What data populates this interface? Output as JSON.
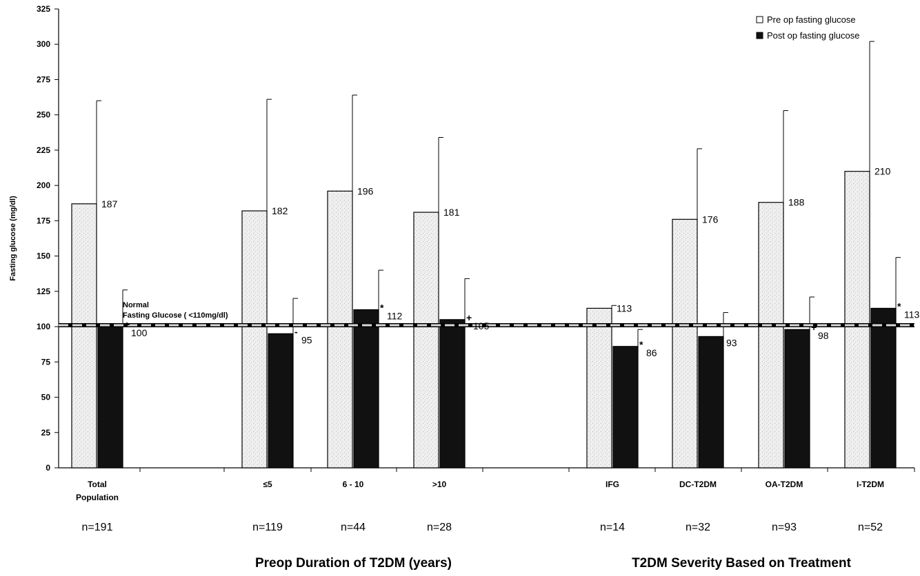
{
  "chart_data": {
    "type": "bar",
    "ylabel": "Fasting glucose (mg/dl)",
    "ylim": [
      0,
      325
    ],
    "yticks": [
      0,
      25,
      50,
      75,
      100,
      125,
      150,
      175,
      200,
      225,
      250,
      275,
      300,
      325
    ],
    "grid": false,
    "legend_position": "top-right",
    "categories": [
      {
        "label": [
          "Total",
          "Population"
        ],
        "n": "n=191"
      },
      {
        "label": [
          "≤5"
        ],
        "n": "n=119"
      },
      {
        "label": [
          "6 - 10"
        ],
        "n": "n=44"
      },
      {
        "label": [
          ">10"
        ],
        "n": "n=28"
      },
      {
        "label": [
          "IFG"
        ],
        "n": "n=14"
      },
      {
        "label": [
          "DC-T2DM"
        ],
        "n": "n=32"
      },
      {
        "label": [
          "OA-T2DM"
        ],
        "n": "n=93"
      },
      {
        "label": [
          "I-T2DM"
        ],
        "n": "n=52"
      }
    ],
    "group_labels": [
      {
        "text": "Preop Duration of T2DM (years)",
        "categories": [
          1,
          3
        ]
      },
      {
        "text": "T2DM Severity Based on Treatment",
        "categories": [
          4,
          7
        ]
      }
    ],
    "series": [
      {
        "name": "Pre op fasting glucose",
        "color": "#ececec",
        "values": [
          187,
          182,
          196,
          181,
          113,
          176,
          188,
          210
        ],
        "error_upper": [
          260,
          261,
          264,
          234,
          115,
          226,
          253,
          302
        ],
        "labels": [
          "187",
          "182",
          "196",
          "181",
          "113",
          "176",
          "188",
          "210"
        ]
      },
      {
        "name": "Post op fasting glucose",
        "color": "#111111",
        "values": [
          100,
          95,
          112,
          105,
          86,
          93,
          98,
          113
        ],
        "error_upper": [
          126,
          120,
          140,
          134,
          98,
          110,
          121,
          149
        ],
        "labels": [
          "100",
          "95",
          "112",
          "105",
          "86",
          "93",
          "98",
          "113"
        ],
        "markers": [
          "+",
          "-",
          "*",
          "+",
          "*",
          "",
          "+",
          "*"
        ]
      }
    ],
    "reference_line": {
      "value": 101,
      "label_lines": [
        "Normal",
        "Fasting Glucose ( <110mg/dl)"
      ]
    }
  }
}
